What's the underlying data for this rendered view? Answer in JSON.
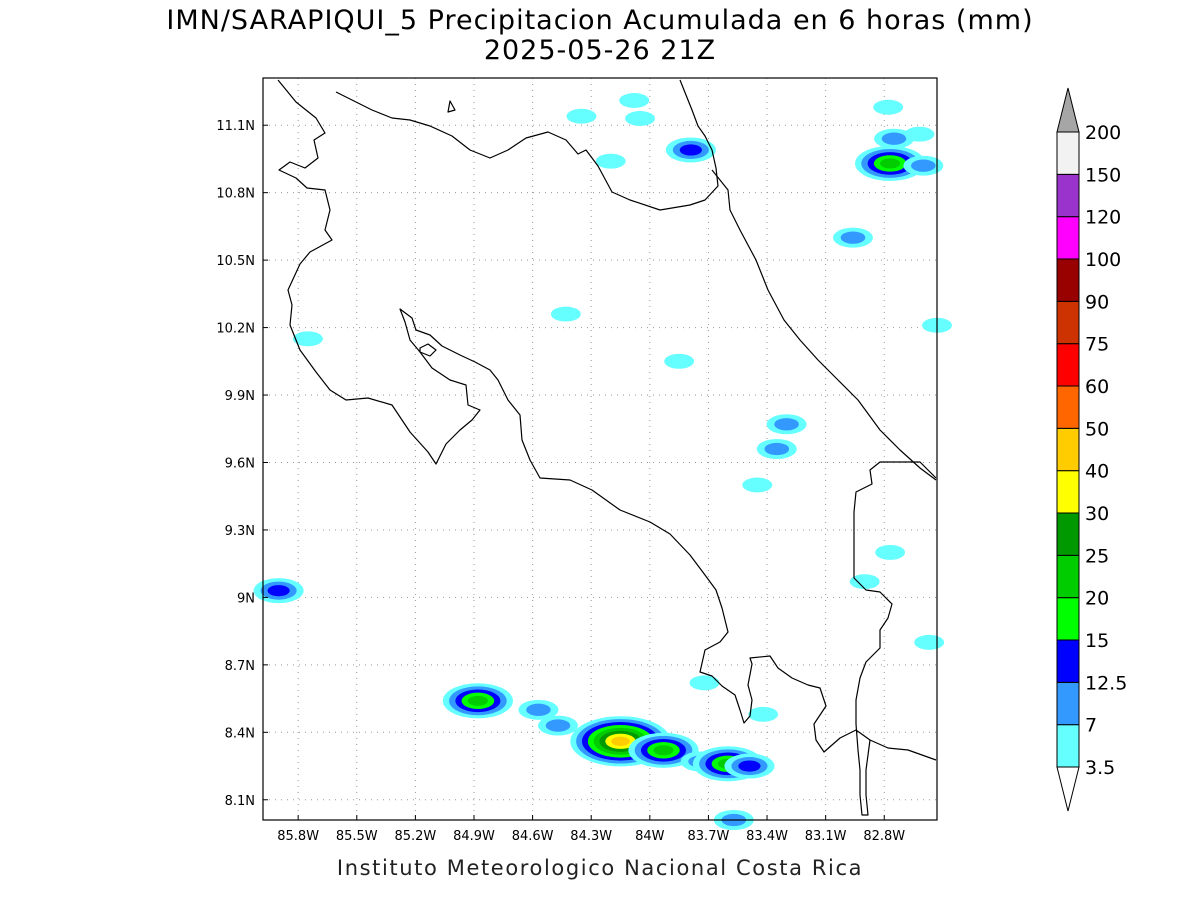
{
  "title_line1": "IMN/SARAPIQUI_5 Precipitacion Acumulada en 6 horas (mm)",
  "title_line2": "2025-05-26 21Z",
  "footer": "Instituto Meteorologico Nacional Costa Rica",
  "map": {
    "lon_range": [
      -85.98,
      -82.53
    ],
    "lat_range": [
      8.01,
      11.31
    ],
    "lon_ticks": [
      {
        "value": -85.8,
        "label": "85.8W"
      },
      {
        "value": -85.5,
        "label": "85.5W"
      },
      {
        "value": -85.2,
        "label": "85.2W"
      },
      {
        "value": -84.9,
        "label": "84.9W"
      },
      {
        "value": -84.6,
        "label": "84.6W"
      },
      {
        "value": -84.3,
        "label": "84.3W"
      },
      {
        "value": -84.0,
        "label": "84W"
      },
      {
        "value": -83.7,
        "label": "83.7W"
      },
      {
        "value": -83.4,
        "label": "83.4W"
      },
      {
        "value": -83.1,
        "label": "83.1W"
      },
      {
        "value": -82.8,
        "label": "82.8W"
      }
    ],
    "lat_ticks": [
      {
        "value": 11.1,
        "label": "11.1N"
      },
      {
        "value": 10.8,
        "label": "10.8N"
      },
      {
        "value": 10.5,
        "label": "10.5N"
      },
      {
        "value": 10.2,
        "label": "10.2N"
      },
      {
        "value": 9.9,
        "label": "9.9N"
      },
      {
        "value": 9.6,
        "label": "9.6N"
      },
      {
        "value": 9.3,
        "label": "9.3N"
      },
      {
        "value": 9.0,
        "label": "9N"
      },
      {
        "value": 8.7,
        "label": "8.7N"
      },
      {
        "value": 8.4,
        "label": "8.4N"
      },
      {
        "value": 8.1,
        "label": "8.1N"
      }
    ],
    "grid": "dotted"
  },
  "colorbar": {
    "levels": [
      "3.5",
      "7",
      "12.5",
      "15",
      "20",
      "25",
      "30",
      "40",
      "50",
      "60",
      "75",
      "90",
      "100",
      "120",
      "150",
      "200"
    ],
    "colors": [
      "#66ffff",
      "#3399ff",
      "#0000ff",
      "#00ff00",
      "#00cc00",
      "#009900",
      "#ffff00",
      "#ffcc00",
      "#ff6600",
      "#ff0000",
      "#cc3300",
      "#990000",
      "#ff00ff",
      "#9933cc",
      "#f2f2f2"
    ],
    "below_color": "#ffffff",
    "above_color": "#a6a6a6"
  },
  "precip_cells": [
    {
      "lon": -85.9,
      "lat": 9.03,
      "level": 3
    },
    {
      "lon": -84.88,
      "lat": 8.54,
      "level": 5
    },
    {
      "lon": -84.57,
      "lat": 8.5,
      "level": 2
    },
    {
      "lon": -84.47,
      "lat": 8.43,
      "level": 2
    },
    {
      "lon": -84.15,
      "lat": 8.36,
      "level": 8
    },
    {
      "lon": -83.93,
      "lat": 8.32,
      "level": 5
    },
    {
      "lon": -83.74,
      "lat": 8.27,
      "level": 2
    },
    {
      "lon": -83.6,
      "lat": 8.26,
      "level": 5
    },
    {
      "lon": -83.49,
      "lat": 8.25,
      "level": 3
    },
    {
      "lon": -83.57,
      "lat": 8.01,
      "level": 2
    },
    {
      "lon": -83.79,
      "lat": 10.99,
      "level": 3
    },
    {
      "lon": -82.77,
      "lat": 10.93,
      "level": 5
    },
    {
      "lon": -82.6,
      "lat": 10.92,
      "level": 2
    },
    {
      "lon": -82.75,
      "lat": 11.04,
      "level": 2
    },
    {
      "lon": -82.62,
      "lat": 11.06,
      "level": 1
    },
    {
      "lon": -82.96,
      "lat": 10.6,
      "level": 2
    },
    {
      "lon": -82.78,
      "lat": 11.18,
      "level": 1
    },
    {
      "lon": -84.35,
      "lat": 11.14,
      "level": 1
    },
    {
      "lon": -84.05,
      "lat": 11.13,
      "level": 1
    },
    {
      "lon": -84.08,
      "lat": 11.21,
      "level": 1
    },
    {
      "lon": -84.2,
      "lat": 10.94,
      "level": 1
    },
    {
      "lon": -84.43,
      "lat": 10.26,
      "level": 1
    },
    {
      "lon": -85.75,
      "lat": 10.15,
      "level": 1
    },
    {
      "lon": -83.85,
      "lat": 10.05,
      "level": 1
    },
    {
      "lon": -83.3,
      "lat": 9.77,
      "level": 2
    },
    {
      "lon": -83.35,
      "lat": 9.66,
      "level": 2
    },
    {
      "lon": -83.45,
      "lat": 9.5,
      "level": 1
    },
    {
      "lon": -82.77,
      "lat": 9.2,
      "level": 1
    },
    {
      "lon": -82.9,
      "lat": 9.07,
      "level": 1
    },
    {
      "lon": -82.57,
      "lat": 8.8,
      "level": 1
    },
    {
      "lon": -83.72,
      "lat": 8.62,
      "level": 1
    },
    {
      "lon": -83.42,
      "lat": 8.48,
      "level": 1
    },
    {
      "lon": -82.53,
      "lat": 10.21,
      "level": 1
    }
  ]
}
